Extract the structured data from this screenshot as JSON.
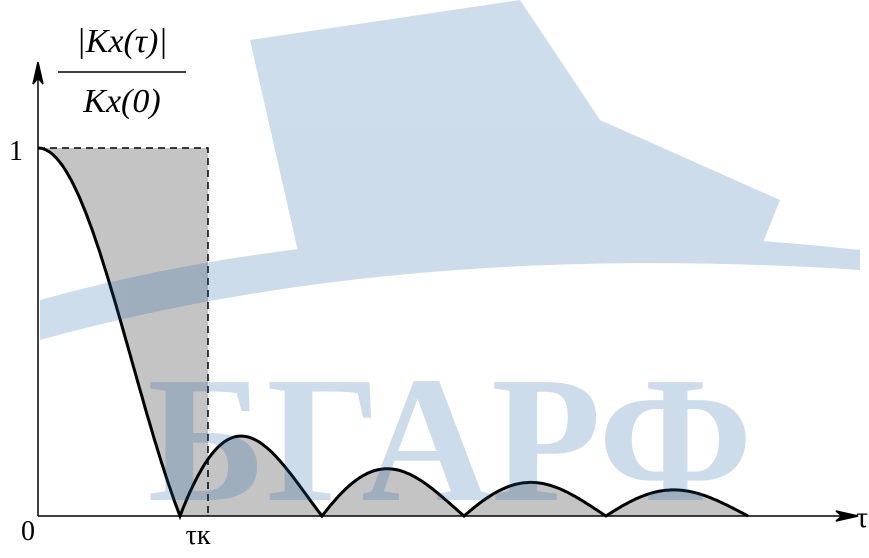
{
  "axis_labels": {
    "y_numerator": "|Kx(τ)|",
    "y_denominator": "Kx(0)",
    "x": "τ",
    "origin": "0",
    "one": "1",
    "tau_k": "τк"
  },
  "watermark": "БГАРФ"
}
